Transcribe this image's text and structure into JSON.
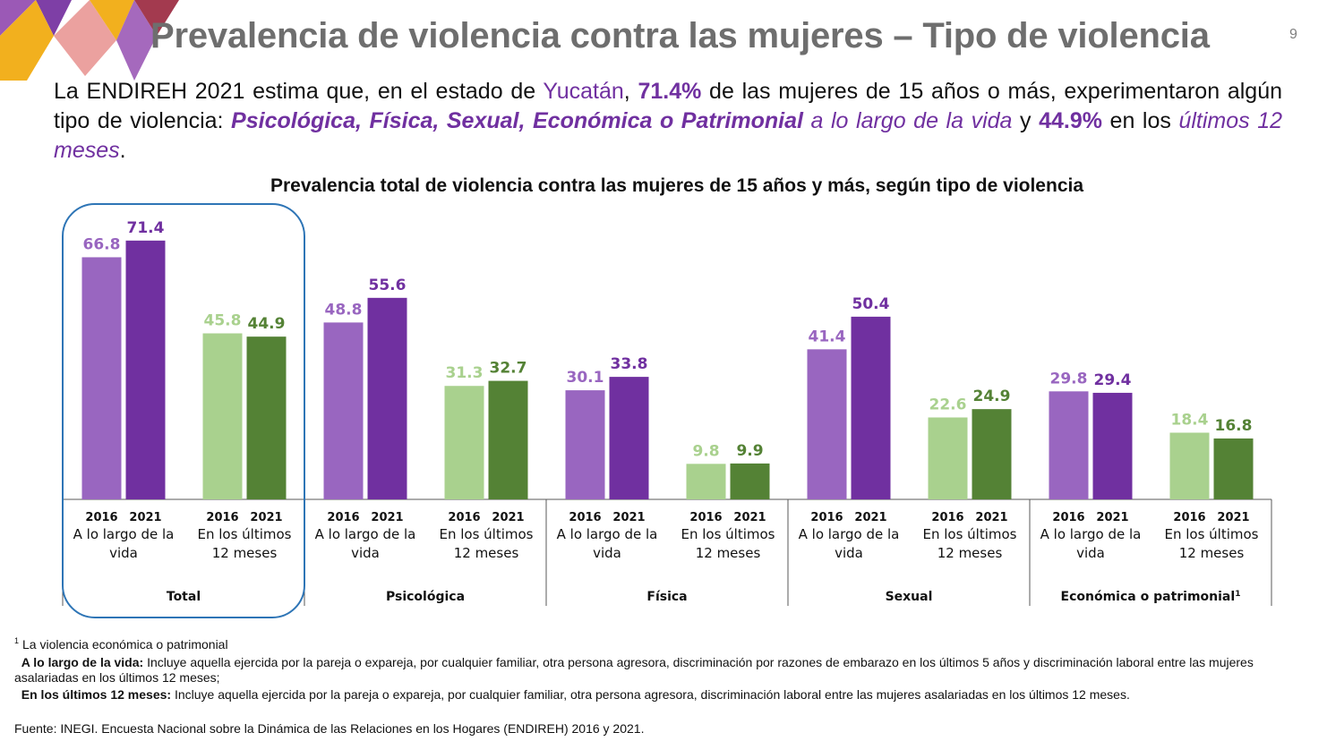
{
  "page": {
    "title": "Prevalencia de violencia contra las mujeres – Tipo de violencia",
    "page_number": "9"
  },
  "intro": {
    "p1": "La ENDIREH 2021 estima que, en el estado de ",
    "state": "Yucatán",
    "p2": ", ",
    "pct_lifetime": "71.4%",
    "p3": " de las mujeres de 15 años o más, experimentaron algún tipo de violencia: ",
    "types": "Psicológica, Física, Sexual, Económica o Patrimonial",
    "p4": " ",
    "lifetime_phrase": "a lo largo de la vida",
    "p5": " y ",
    "pct_12m": "44.9%",
    "p6": " en los ",
    "last12_phrase": "últimos 12 meses",
    "p7": "."
  },
  "colors": {
    "purple_2016": "#9966c0",
    "purple_2021": "#7030a0",
    "green_2016": "#a9d18e",
    "green_2021": "#548235",
    "highlight_border": "#2e75b6",
    "title_gray": "#6e6e6e"
  },
  "chart_data": {
    "type": "bar",
    "title": "Prevalencia total de violencia contra las mujeres de 15 años y más, según tipo de violencia",
    "years": [
      "2016",
      "2021"
    ],
    "period_labels": {
      "lifetime": [
        "A lo largo de la",
        "vida"
      ],
      "last12": [
        "En los últimos",
        "12 meses"
      ]
    },
    "highlighted_category": "Total",
    "ylim": [
      0,
      100
    ],
    "groups": [
      {
        "category": "Total",
        "lifetime": [
          66.8,
          71.4
        ],
        "last12": [
          45.8,
          44.9
        ]
      },
      {
        "category": "Psicológica",
        "lifetime": [
          48.8,
          55.6
        ],
        "last12": [
          31.3,
          32.7
        ]
      },
      {
        "category": "Física",
        "lifetime": [
          30.1,
          33.8
        ],
        "last12": [
          9.8,
          9.9
        ]
      },
      {
        "category": "Sexual",
        "lifetime": [
          41.4,
          50.4
        ],
        "last12": [
          22.6,
          24.9
        ]
      },
      {
        "category": "Económica o patrimonial",
        "category_sup": "1",
        "lifetime": [
          29.8,
          29.4
        ],
        "last12": [
          18.4,
          16.8
        ]
      }
    ]
  },
  "footnotes": {
    "note_label": "La violencia económica o patrimonial",
    "note_sup": "1",
    "lifetime_label": "A lo largo de la vida:",
    "lifetime_text": " Incluye aquella ejercida por la pareja o expareja, por cualquier familiar, otra persona agresora, discriminación por razones de embarazo en los últimos 5 años y discriminación laboral entre las mujeres asalariadas en los últimos 12 meses;",
    "last12_label": "En los últimos 12 meses:",
    "last12_text": " Incluye aquella ejercida por la pareja o expareja, por cualquier familiar, otra persona agresora, discriminación laboral entre las mujeres asalariadas en los últimos 12 meses.",
    "source": "Fuente: INEGI. Encuesta Nacional sobre la Dinámica de las Relaciones en los Hogares (ENDIREH) 2016 y 2021."
  }
}
